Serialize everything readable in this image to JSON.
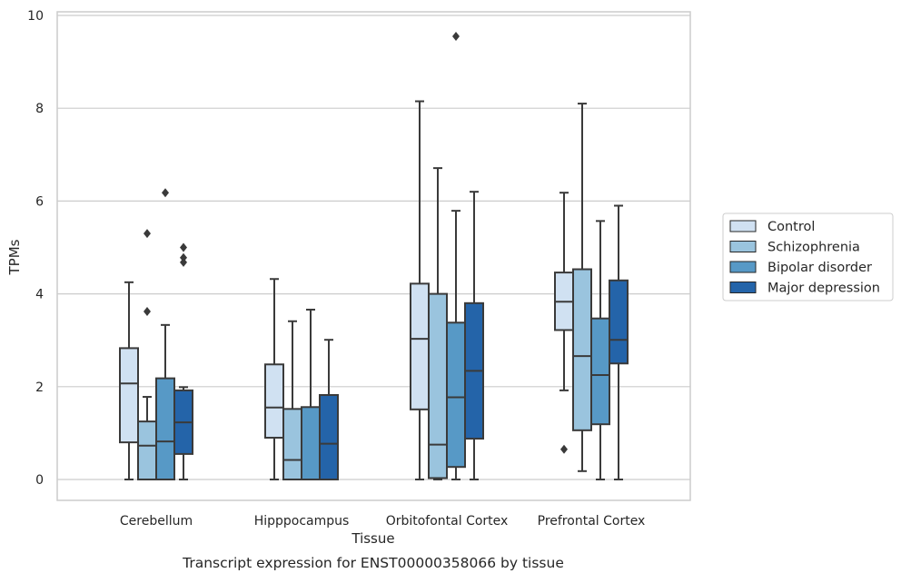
{
  "chart_data": {
    "type": "boxplot",
    "caption": "Transcript expression for ENST00000358066 by tissue",
    "xlabel": "Tissue",
    "ylabel": "TPMs",
    "ylim": [
      -0.45,
      10.05
    ],
    "yticks": [
      0,
      2,
      4,
      6,
      8,
      10
    ],
    "categories": [
      "Cerebellum",
      "Hipppocampus",
      "Orbitofontal Cortex",
      "Prefrontal Cortex"
    ],
    "grid": "horizontal",
    "legend_position": "right",
    "series": [
      {
        "name": "Control",
        "color": "#d0e1f2",
        "boxes": [
          {
            "whislo": 0.0,
            "q1": 0.8,
            "med": 2.07,
            "q3": 2.83,
            "whishi": 4.25,
            "fliers": []
          },
          {
            "whislo": 0.0,
            "q1": 0.9,
            "med": 1.55,
            "q3": 2.48,
            "whishi": 4.32,
            "fliers": []
          },
          {
            "whislo": 0.0,
            "q1": 1.51,
            "med": 3.03,
            "q3": 4.22,
            "whishi": 8.15,
            "fliers": []
          },
          {
            "whislo": 1.92,
            "q1": 3.22,
            "med": 3.83,
            "q3": 4.46,
            "whishi": 6.18,
            "fliers": [
              0.65
            ]
          }
        ]
      },
      {
        "name": "Schizophrenia",
        "color": "#9ac4de",
        "boxes": [
          {
            "whislo": 0.0,
            "q1": 0.0,
            "med": 0.73,
            "q3": 1.25,
            "whishi": 1.78,
            "fliers": [
              3.62,
              5.3
            ]
          },
          {
            "whislo": 0.0,
            "q1": 0.0,
            "med": 0.42,
            "q3": 1.52,
            "whishi": 3.41,
            "fliers": []
          },
          {
            "whislo": 0.0,
            "q1": 0.03,
            "med": 0.75,
            "q3": 4.0,
            "whishi": 6.71,
            "fliers": []
          },
          {
            "whislo": 0.18,
            "q1": 1.06,
            "med": 2.66,
            "q3": 4.53,
            "whishi": 8.1,
            "fliers": []
          }
        ]
      },
      {
        "name": "Bipolar disorder",
        "color": "#5799c6",
        "boxes": [
          {
            "whislo": 0.0,
            "q1": 0.0,
            "med": 0.82,
            "q3": 2.18,
            "whishi": 3.33,
            "fliers": [
              6.18
            ]
          },
          {
            "whislo": 0.0,
            "q1": 0.0,
            "med": 0.0,
            "q3": 1.56,
            "whishi": 3.66,
            "fliers": []
          },
          {
            "whislo": 0.0,
            "q1": 0.27,
            "med": 1.77,
            "q3": 3.38,
            "whishi": 5.79,
            "fliers": [
              9.55
            ]
          },
          {
            "whislo": 0.0,
            "q1": 1.19,
            "med": 2.25,
            "q3": 3.47,
            "whishi": 5.57,
            "fliers": []
          }
        ]
      },
      {
        "name": "Major depression",
        "color": "#2464a9",
        "boxes": [
          {
            "whislo": 0.0,
            "q1": 0.55,
            "med": 1.23,
            "q3": 1.92,
            "whishi": 1.99,
            "fliers": [
              4.68,
              4.78,
              5.0
            ]
          },
          {
            "whislo": 0.0,
            "q1": 0.0,
            "med": 0.77,
            "q3": 1.82,
            "whishi": 3.01,
            "fliers": []
          },
          {
            "whislo": 0.0,
            "q1": 0.88,
            "med": 2.34,
            "q3": 3.8,
            "whishi": 6.2,
            "fliers": []
          },
          {
            "whislo": 0.0,
            "q1": 2.5,
            "med": 3.01,
            "q3": 4.29,
            "whishi": 5.9,
            "fliers": []
          }
        ]
      }
    ]
  }
}
